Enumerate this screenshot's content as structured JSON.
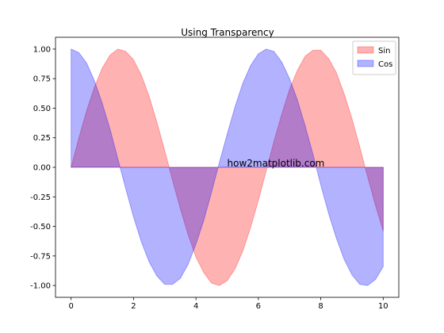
{
  "chart_data": {
    "type": "area",
    "title": "Using Transparency",
    "x": [
      0,
      0.25,
      0.5,
      0.75,
      1,
      1.25,
      1.5,
      1.75,
      2,
      2.25,
      2.5,
      2.75,
      3,
      3.25,
      3.5,
      3.75,
      4,
      4.25,
      4.5,
      4.75,
      5,
      5.25,
      5.5,
      5.75,
      6,
      6.25,
      6.5,
      6.75,
      7,
      7.25,
      7.5,
      7.75,
      8,
      8.25,
      8.5,
      8.75,
      9,
      9.25,
      9.5,
      9.75,
      10
    ],
    "series": [
      {
        "name": "Sin",
        "color": "#ff0000",
        "values": [
          0,
          0.25,
          0.48,
          0.68,
          0.84,
          0.95,
          1.0,
          0.98,
          0.91,
          0.78,
          0.6,
          0.38,
          0.14,
          -0.11,
          -0.35,
          -0.57,
          -0.76,
          -0.89,
          -0.98,
          -1.0,
          -0.96,
          -0.86,
          -0.71,
          -0.51,
          -0.28,
          -0.03,
          0.22,
          0.45,
          0.66,
          0.82,
          0.94,
          0.99,
          0.99,
          0.92,
          0.8,
          0.62,
          0.41,
          0.17,
          -0.08,
          -0.32,
          -0.54
        ]
      },
      {
        "name": "Cos",
        "color": "#0000ff",
        "values": [
          1,
          0.97,
          0.88,
          0.73,
          0.54,
          0.32,
          0.07,
          -0.18,
          -0.42,
          -0.63,
          -0.8,
          -0.92,
          -0.99,
          -0.99,
          -0.94,
          -0.82,
          -0.65,
          -0.45,
          -0.21,
          0.04,
          0.28,
          0.51,
          0.71,
          0.86,
          0.96,
          1.0,
          0.98,
          0.89,
          0.75,
          0.57,
          0.35,
          0.11,
          -0.15,
          -0.39,
          -0.6,
          -0.78,
          -0.91,
          -0.99,
          -1.0,
          -0.95,
          -0.84
        ]
      }
    ],
    "alpha": 0.3,
    "xlim": [
      -0.5,
      10.5
    ],
    "xticks": [
      0,
      2,
      4,
      6,
      8,
      10
    ],
    "ylim": [
      -1.1,
      1.1
    ],
    "yticks": [
      {
        "value": -1,
        "label": "-1.00"
      },
      {
        "value": -0.75,
        "label": "-0.75"
      },
      {
        "value": -0.5,
        "label": "-0.50"
      },
      {
        "value": -0.25,
        "label": "-0.25"
      },
      {
        "value": 0,
        "label": "0.00"
      },
      {
        "value": 0.25,
        "label": "0.25"
      },
      {
        "value": 0.5,
        "label": "0.50"
      },
      {
        "value": 0.75,
        "label": "0.75"
      },
      {
        "value": 1,
        "label": "1.00"
      }
    ],
    "annotation": {
      "text": "how2matplotlib.com",
      "x": 5,
      "y": 0
    },
    "legend": "upper right"
  }
}
